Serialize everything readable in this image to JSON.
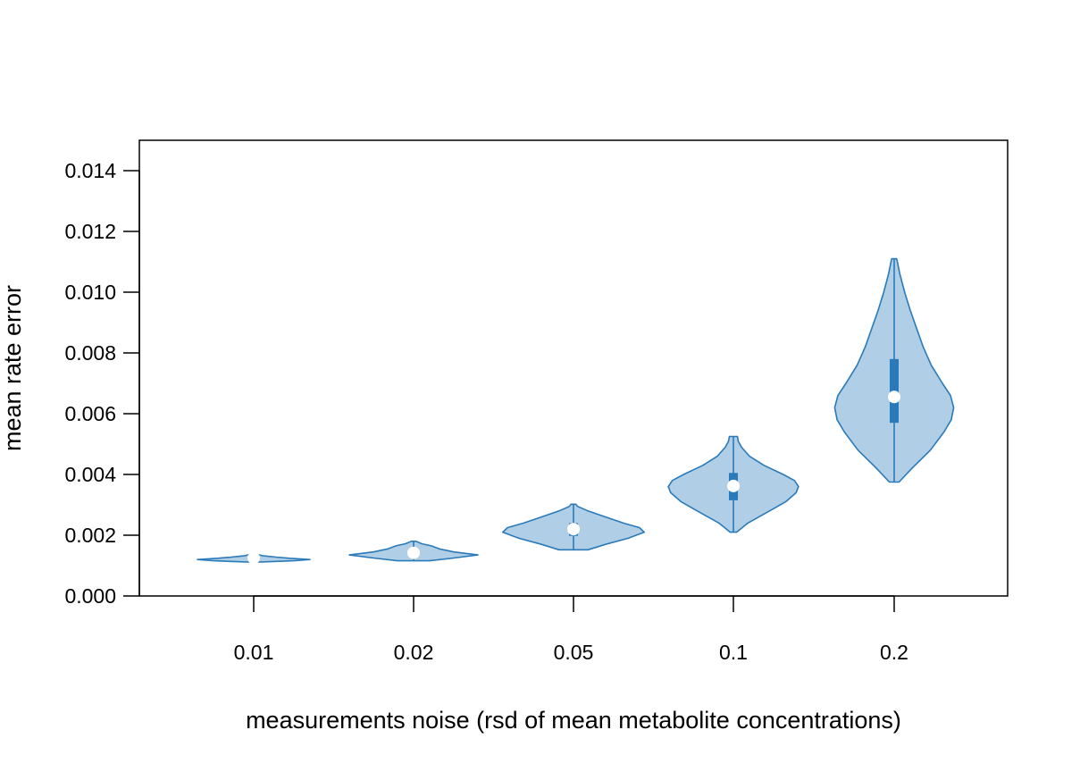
{
  "chart_data": {
    "type": "violin",
    "title": "",
    "xlabel": "measurements noise (rsd of mean metabolite concentrations)",
    "ylabel": "mean rate error",
    "categories": [
      "0.01",
      "0.02",
      "0.05",
      "0.1",
      "0.2"
    ],
    "ylim": [
      0,
      0.015
    ],
    "yticks": [
      "0.000",
      "0.002",
      "0.004",
      "0.006",
      "0.008",
      "0.010",
      "0.012",
      "0.014"
    ],
    "grid": false,
    "colors": {
      "fill": "#b0cfe6",
      "stroke": "#2a7ab9",
      "box": "#2a7ab9",
      "median": "#ffffff"
    },
    "series": [
      {
        "category": "0.01",
        "min": 0.00112,
        "max": 0.00138,
        "q1": 0.0012,
        "median": 0.00125,
        "q3": 0.0013,
        "density": [
          [
            0.00112,
            0.1
          ],
          [
            0.00116,
            0.5
          ],
          [
            0.0012,
            0.7
          ],
          [
            0.00124,
            0.45
          ],
          [
            0.00128,
            0.28
          ],
          [
            0.00132,
            0.12
          ],
          [
            0.00138,
            0.03
          ]
        ]
      },
      {
        "category": "0.02",
        "min": 0.00116,
        "max": 0.0018,
        "q1": 0.00135,
        "median": 0.00142,
        "q3": 0.0015,
        "density": [
          [
            0.00116,
            0.2
          ],
          [
            0.00125,
            0.5
          ],
          [
            0.00135,
            0.8
          ],
          [
            0.00145,
            0.5
          ],
          [
            0.00155,
            0.32
          ],
          [
            0.00165,
            0.22
          ],
          [
            0.00172,
            0.1
          ],
          [
            0.0018,
            0.03
          ]
        ]
      },
      {
        "category": "0.05",
        "min": 0.00152,
        "max": 0.00302,
        "q1": 0.00198,
        "median": 0.0022,
        "q3": 0.0024,
        "density": [
          [
            0.00152,
            0.18
          ],
          [
            0.0017,
            0.4
          ],
          [
            0.0019,
            0.68
          ],
          [
            0.0021,
            0.88
          ],
          [
            0.00225,
            0.82
          ],
          [
            0.0024,
            0.62
          ],
          [
            0.0026,
            0.4
          ],
          [
            0.0028,
            0.18
          ],
          [
            0.00295,
            0.05
          ],
          [
            0.00302,
            0.03
          ]
        ]
      },
      {
        "category": "0.1",
        "min": 0.0021,
        "max": 0.00525,
        "q1": 0.00315,
        "median": 0.00362,
        "q3": 0.00405,
        "density": [
          [
            0.0021,
            0.04
          ],
          [
            0.0024,
            0.18
          ],
          [
            0.0028,
            0.45
          ],
          [
            0.0031,
            0.65
          ],
          [
            0.0034,
            0.78
          ],
          [
            0.0036,
            0.81
          ],
          [
            0.0038,
            0.76
          ],
          [
            0.004,
            0.62
          ],
          [
            0.0043,
            0.38
          ],
          [
            0.0046,
            0.2
          ],
          [
            0.0049,
            0.1
          ],
          [
            0.0051,
            0.06
          ],
          [
            0.00525,
            0.05
          ]
        ]
      },
      {
        "category": "0.2",
        "min": 0.00375,
        "max": 0.0111,
        "q1": 0.0057,
        "median": 0.00655,
        "q3": 0.0078,
        "density": [
          [
            0.00375,
            0.06
          ],
          [
            0.0042,
            0.22
          ],
          [
            0.0048,
            0.45
          ],
          [
            0.0054,
            0.62
          ],
          [
            0.0058,
            0.71
          ],
          [
            0.0062,
            0.74
          ],
          [
            0.0066,
            0.7
          ],
          [
            0.007,
            0.6
          ],
          [
            0.0076,
            0.46
          ],
          [
            0.0082,
            0.36
          ],
          [
            0.0088,
            0.28
          ],
          [
            0.0094,
            0.2
          ],
          [
            0.01,
            0.13
          ],
          [
            0.0106,
            0.07
          ],
          [
            0.011,
            0.04
          ],
          [
            0.0111,
            0.03
          ]
        ]
      }
    ]
  }
}
